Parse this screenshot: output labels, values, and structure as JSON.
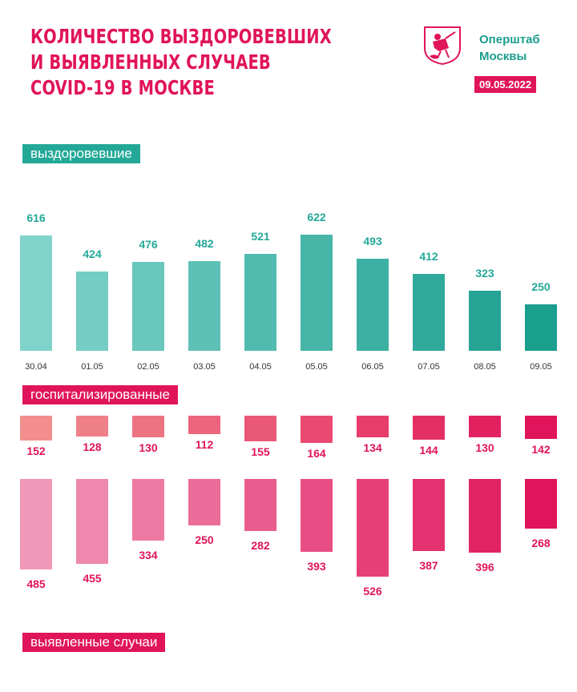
{
  "header": {
    "title_lines": [
      "Количество выздоровевших",
      "и выявленных случаев",
      "COVID-19 в Москве"
    ],
    "org_lines": [
      "Оперштаб",
      "Москвы"
    ],
    "date": "09.05.2022",
    "logo_icon": "moscow-coat-of-arms-icon"
  },
  "banners": {
    "recovered": "выздоровевшие",
    "hospitalized": "госпитализированные",
    "cases": "выявленные случаи"
  },
  "colors": {
    "accent_pink": "#e0145a",
    "accent_teal": "#23a898"
  },
  "chart_data": [
    {
      "type": "bar",
      "name": "выздоровевшие",
      "categories": [
        "30.04",
        "01.05",
        "02.05",
        "03.05",
        "04.05",
        "05.05",
        "06.05",
        "07.05",
        "08.05",
        "09.05"
      ],
      "values": [
        616,
        424,
        476,
        482,
        521,
        622,
        493,
        412,
        323,
        250
      ],
      "color_from": "#7fd3cb",
      "color_to": "#1a9e8e"
    },
    {
      "type": "bar",
      "name": "госпитализированные",
      "categories": [
        "30.04",
        "01.05",
        "02.05",
        "03.05",
        "04.05",
        "05.05",
        "06.05",
        "07.05",
        "08.05",
        "09.05"
      ],
      "values": [
        152,
        128,
        130,
        112,
        155,
        164,
        134,
        144,
        130,
        142
      ],
      "color_from": "#f28e8e",
      "color_to": "#e0145a"
    },
    {
      "type": "bar",
      "name": "выявленные случаи",
      "categories": [
        "30.04",
        "01.05",
        "02.05",
        "03.05",
        "04.05",
        "05.05",
        "06.05",
        "07.05",
        "08.05",
        "09.05"
      ],
      "values": [
        485,
        455,
        334,
        250,
        282,
        393,
        526,
        387,
        396,
        268
      ],
      "color_from": "#f197b8",
      "color_to": "#e0145a"
    }
  ]
}
